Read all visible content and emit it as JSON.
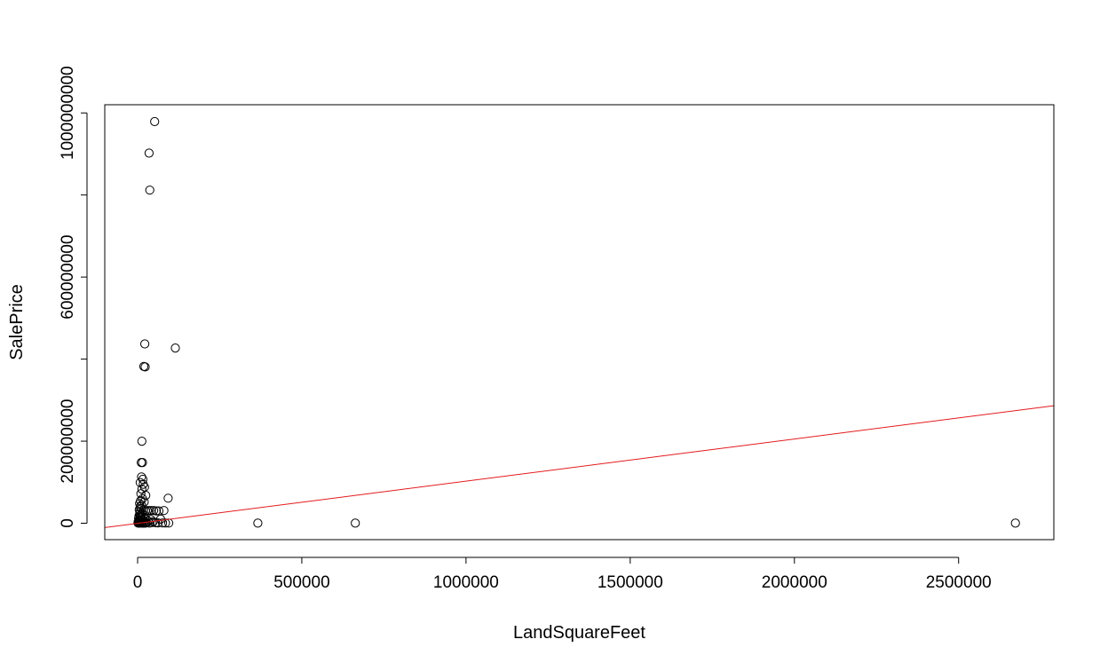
{
  "chart_data": {
    "type": "scatter",
    "title": "",
    "xlabel": "LandSquareFeet",
    "ylabel": "SalePrice",
    "xlim": [
      -100000,
      2790000
    ],
    "ylim": [
      -40000000,
      1020000000
    ],
    "x_ticks": [
      {
        "value": 0,
        "label": "0"
      },
      {
        "value": 500000,
        "label": "500000"
      },
      {
        "value": 1000000,
        "label": "1000000"
      },
      {
        "value": 1500000,
        "label": "1500000"
      },
      {
        "value": 2000000,
        "label": "2000000"
      },
      {
        "value": 2500000,
        "label": "2500000"
      }
    ],
    "y_ticks": [
      {
        "value": 0,
        "label": "0",
        "show_label": true
      },
      {
        "value": 200000000,
        "label": "200000000",
        "show_label": true
      },
      {
        "value": 400000000,
        "label": "400000000",
        "show_label": false
      },
      {
        "value": 600000000,
        "label": "600000000",
        "show_label": true
      },
      {
        "value": 800000000,
        "label": "800000000",
        "show_label": false
      },
      {
        "value": 1000000000,
        "label": "1000000000",
        "show_label": true
      }
    ],
    "points": [
      [
        52000,
        979000000
      ],
      [
        35000,
        902000000
      ],
      [
        37000,
        812000000
      ],
      [
        22000,
        437000000
      ],
      [
        115000,
        427000000
      ],
      [
        19000,
        382000000
      ],
      [
        23000,
        381000000
      ],
      [
        13000,
        200000000
      ],
      [
        11000,
        148000000
      ],
      [
        15000,
        148000000
      ],
      [
        12000,
        113000000
      ],
      [
        16000,
        107000000
      ],
      [
        8000,
        99000000
      ],
      [
        17000,
        95000000
      ],
      [
        21000,
        88000000
      ],
      [
        13000,
        83000000
      ],
      [
        25000,
        68000000
      ],
      [
        93000,
        61000000
      ],
      [
        10000,
        72000000
      ],
      [
        15000,
        60000000
      ],
      [
        9000,
        55000000
      ],
      [
        20000,
        52000000
      ],
      [
        6000,
        48000000
      ],
      [
        12000,
        44000000
      ],
      [
        8000,
        40000000
      ],
      [
        11000,
        36000000
      ],
      [
        5000,
        33000000
      ],
      [
        18000,
        32000000
      ],
      [
        24000,
        31000000
      ],
      [
        30000,
        31000000
      ],
      [
        36000,
        31000000
      ],
      [
        42000,
        31000000
      ],
      [
        49000,
        31000000
      ],
      [
        57000,
        30000000
      ],
      [
        65000,
        30000000
      ],
      [
        80000,
        31000000
      ],
      [
        7000,
        27000000
      ],
      [
        14000,
        25000000
      ],
      [
        6000,
        22000000
      ],
      [
        10000,
        20000000
      ],
      [
        16000,
        19000000
      ],
      [
        4000,
        17000000
      ],
      [
        9000,
        15000000
      ],
      [
        22000,
        14000000
      ],
      [
        3000,
        12000000
      ],
      [
        12000,
        11000000
      ],
      [
        26000,
        10000000
      ],
      [
        40000,
        9000000
      ],
      [
        70000,
        10000000
      ],
      [
        5000,
        8000000
      ],
      [
        17000,
        7000000
      ],
      [
        8000,
        6000000
      ],
      [
        32000,
        5000000
      ],
      [
        48000,
        4000000
      ],
      [
        2000,
        4000000
      ],
      [
        13000,
        3000000
      ],
      [
        20000,
        2500000
      ],
      [
        6000,
        2000000
      ],
      [
        28000,
        1500000
      ],
      [
        44000,
        1500000
      ],
      [
        55000,
        1000000
      ],
      [
        62000,
        800000
      ],
      [
        76000,
        600000
      ],
      [
        85000,
        500000
      ],
      [
        95000,
        400000
      ],
      [
        3000,
        800000
      ],
      [
        9000,
        600000
      ],
      [
        15000,
        400000
      ],
      [
        24000,
        300000
      ],
      [
        36000,
        200000
      ],
      [
        1000,
        500000
      ],
      [
        5000,
        300000
      ],
      [
        11000,
        200000
      ],
      [
        19000,
        100000
      ],
      [
        366000,
        300000
      ],
      [
        663000,
        300000
      ],
      [
        2673000,
        200000
      ]
    ],
    "regression_line": {
      "color": "#e31a1c",
      "from": [
        -100000,
        -10500000
      ],
      "to": [
        2790000,
        286500000
      ]
    },
    "point_style": "open-circle",
    "grid": false,
    "legend": "none"
  }
}
